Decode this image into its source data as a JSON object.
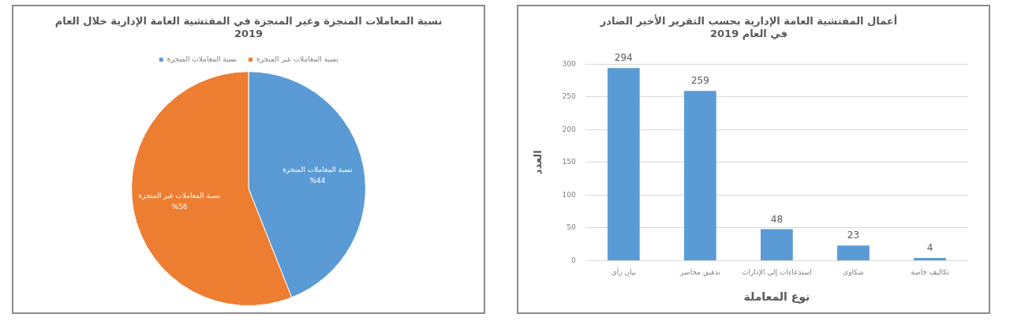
{
  "chart_data": [
    {
      "type": "pie",
      "title": "نسبة المعاملات المنجزة وغير المنجزة في المفتشية العامة الإدارية خلال العام\n2019",
      "categories": [
        "نسبة المعاملات المنجزة",
        "نسبة المعاملات غير المنجزة"
      ],
      "values": [
        44,
        56
      ],
      "colors": [
        "#5b9bd5",
        "#ed7d31"
      ],
      "value_labels": [
        "%44",
        "%56"
      ],
      "legend": "top"
    },
    {
      "type": "bar",
      "title": "أعمال المفتشية العامة الإدارية بحسب التقرير الأخير الصادر\nفي العام 2019",
      "xlabel": "نوع المعاملة",
      "ylabel": "العدد",
      "categories": [
        "بيان رأي",
        "تدقيق محاضر",
        "استدعاءات إلى الإدارات",
        "شكاوى",
        "تكاليف خاصة"
      ],
      "values": [
        294,
        259,
        48,
        23,
        4
      ],
      "color": "#5b9bd5",
      "ylim": [
        0,
        300
      ],
      "yticks": [
        0,
        50,
        100,
        150,
        200,
        250,
        300
      ],
      "grid": "y",
      "data_labels": true
    }
  ]
}
